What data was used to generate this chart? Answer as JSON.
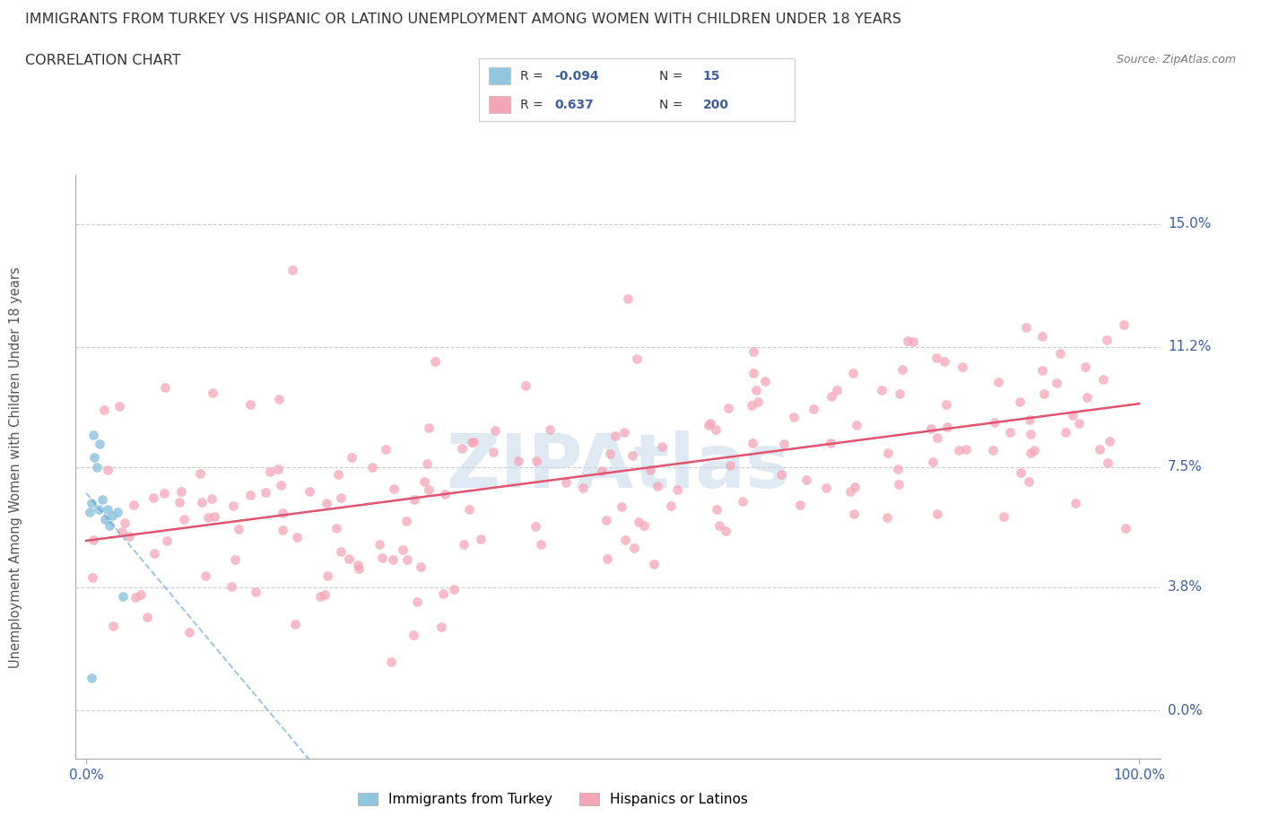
{
  "title": "IMMIGRANTS FROM TURKEY VS HISPANIC OR LATINO UNEMPLOYMENT AMONG WOMEN WITH CHILDREN UNDER 18 YEARS",
  "subtitle": "CORRELATION CHART",
  "source": "Source: ZipAtlas.com",
  "ylabel": "Unemployment Among Women with Children Under 18 years",
  "yticks": [
    0.0,
    3.8,
    7.5,
    11.2,
    15.0
  ],
  "ytick_labels": [
    "0.0%",
    "3.8%",
    "7.5%",
    "11.2%",
    "15.0%"
  ],
  "grid_color": "#cccccc",
  "background_color": "#ffffff",
  "blue_color": "#92c5de",
  "pink_color": "#f4a6b8",
  "trendline_blue_color": "#5b9bd5",
  "trendline_pink_color": "#e05470",
  "axis_label_color": "#3c5ea0",
  "title_color": "#333333",
  "seed": 42,
  "n_pink": 200,
  "n_blue": 15,
  "watermark_text": "ZIPAtlas",
  "watermark_color": "#c5d8ea",
  "legend_label_blue": "Immigrants from Turkey",
  "legend_label_pink": "Hispanics or Latinos"
}
